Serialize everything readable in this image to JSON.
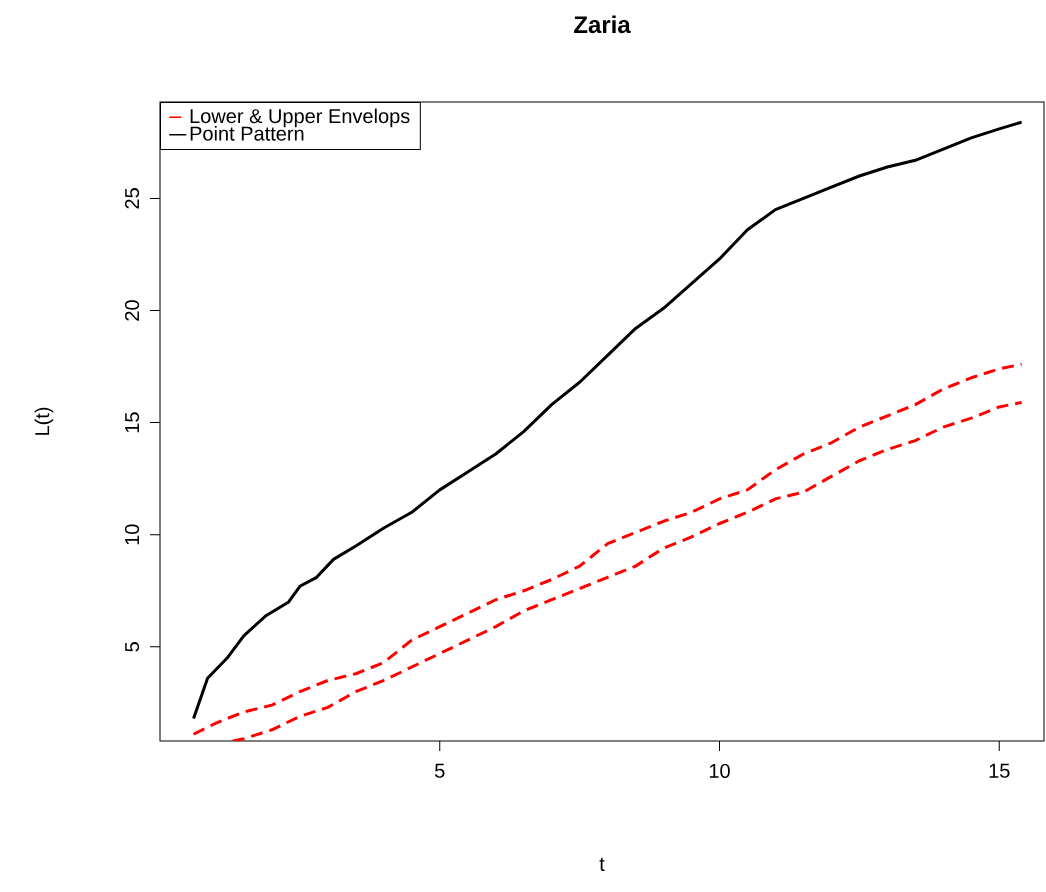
{
  "chart_data": {
    "type": "line",
    "title": "Zaria",
    "xlabel": "t",
    "ylabel": "L(t)",
    "xlim": [
      0,
      15.8
    ],
    "ylim": [
      0.8,
      29.3
    ],
    "xticks": [
      5,
      10,
      15
    ],
    "yticks": [
      5,
      10,
      15,
      20,
      25
    ],
    "legend": "top left",
    "grid": false,
    "series": [
      {
        "name": "Lower & Upper Envelops",
        "color": "#ff0000",
        "line_style": "dashed",
        "x": [
          0.6,
          1,
          1.5,
          2,
          2.5,
          3,
          3.5,
          4,
          4.5,
          5,
          5.5,
          6,
          6.5,
          7,
          7.5,
          8,
          8.5,
          9,
          9.5,
          10,
          10.5,
          11,
          11.5,
          12,
          12.5,
          13,
          13.5,
          14,
          14.5,
          15,
          15.4
        ],
        "values": [
          1.1,
          1.6,
          2.1,
          2.4,
          3.0,
          3.5,
          3.8,
          4.3,
          5.3,
          5.9,
          6.5,
          7.1,
          7.5,
          8.0,
          8.6,
          9.6,
          10.1,
          10.6,
          11.0,
          11.6,
          12.0,
          12.9,
          13.6,
          14.1,
          14.8,
          15.3,
          15.8,
          16.5,
          17.0,
          17.4,
          17.6
        ]
      },
      {
        "color": "#ff0000",
        "line_style": "dashed",
        "x": [
          1.3,
          1.5,
          2,
          2.5,
          3,
          3.5,
          4,
          4.5,
          5,
          5.5,
          6,
          6.5,
          7,
          7.5,
          8,
          8.5,
          9,
          9.5,
          10,
          10.5,
          11,
          11.5,
          12,
          12.5,
          13,
          13.5,
          14,
          14.5,
          15,
          15.4
        ],
        "values": [
          0.8,
          0.9,
          1.3,
          1.9,
          2.3,
          3.0,
          3.5,
          4.1,
          4.7,
          5.3,
          5.9,
          6.6,
          7.1,
          7.6,
          8.1,
          8.6,
          9.4,
          9.9,
          10.5,
          11.0,
          11.6,
          11.9,
          12.6,
          13.3,
          13.8,
          14.2,
          14.8,
          15.2,
          15.7,
          15.9
        ]
      },
      {
        "name": "Point Pattern",
        "color": "#000000",
        "line_style": "solid",
        "x": [
          0.6,
          0.85,
          1.2,
          1.5,
          1.9,
          2.3,
          2.5,
          2.8,
          3.1,
          3.5,
          4,
          4.5,
          5,
          5.5,
          6,
          6.5,
          7,
          7.5,
          8,
          8.5,
          9,
          9.5,
          10,
          10.5,
          11,
          11.5,
          12,
          12.5,
          13,
          13.5,
          14,
          14.5,
          15,
          15.4
        ],
        "values": [
          1.8,
          3.6,
          4.5,
          5.5,
          6.4,
          7.0,
          7.7,
          8.1,
          8.9,
          9.5,
          10.3,
          11.0,
          12.0,
          12.8,
          13.6,
          14.6,
          15.8,
          16.8,
          18.0,
          19.2,
          20.1,
          21.2,
          22.3,
          23.6,
          24.5,
          25.0,
          25.5,
          26.0,
          26.4,
          26.7,
          27.2,
          27.7,
          28.1,
          28.4
        ]
      }
    ]
  }
}
